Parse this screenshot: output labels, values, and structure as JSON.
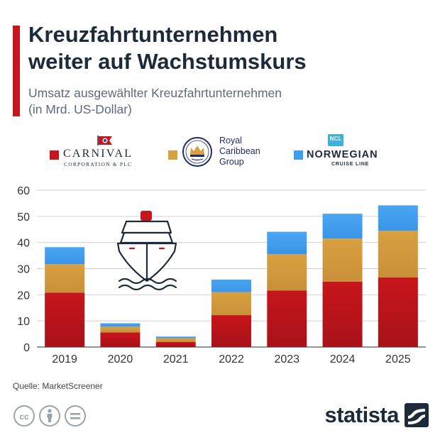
{
  "header": {
    "title_line1": "Kreuzfahrtunternehmen",
    "title_line2": "weiter auf Wachstumskurs",
    "subtitle_line1": "Umsatz ausgewählter Kreuzfahrtunternehmen",
    "subtitle_line2": "(in Mrd. US-Dollar)"
  },
  "legend": {
    "carnival_name": "CARNIVAL",
    "carnival_sub": "CORPORATION & PLC",
    "royal_line1": "Royal",
    "royal_line2": "Caribbean",
    "royal_line3": "Group",
    "ncl_badge": "NCL",
    "norwegian_name": "NORWEGIAN",
    "norwegian_sub": "CRUISE LINE"
  },
  "colors": {
    "carnival": "#c4161c",
    "royal": "#d9a040",
    "norwegian": "#3b9ff0",
    "accent": "#c4161c",
    "grid": "#d0d0d0",
    "text_dark": "#1c2a3a"
  },
  "chart_data": {
    "type": "bar",
    "stacked": true,
    "categories": [
      "2019",
      "2020",
      "2021",
      "2022",
      "2023",
      "2024",
      "2025"
    ],
    "series": [
      {
        "name": "Carnival Corporation & plc",
        "values": [
          20.8,
          5.6,
          1.9,
          12.2,
          21.6,
          25.0,
          26.6
        ]
      },
      {
        "name": "Royal Caribbean Group",
        "values": [
          10.9,
          2.2,
          1.5,
          8.8,
          13.9,
          16.5,
          17.9
        ]
      },
      {
        "name": "Norwegian Cruise Line",
        "values": [
          6.5,
          1.3,
          0.6,
          4.8,
          8.6,
          9.5,
          9.7
        ]
      }
    ],
    "yticks": [
      "0",
      "10",
      "20",
      "30",
      "40",
      "50",
      "60"
    ],
    "ylim": [
      0,
      60
    ],
    "grid": true,
    "legend_position": "top"
  },
  "footer": {
    "source": "Quelle: MarketScreener",
    "brand": "statista"
  }
}
